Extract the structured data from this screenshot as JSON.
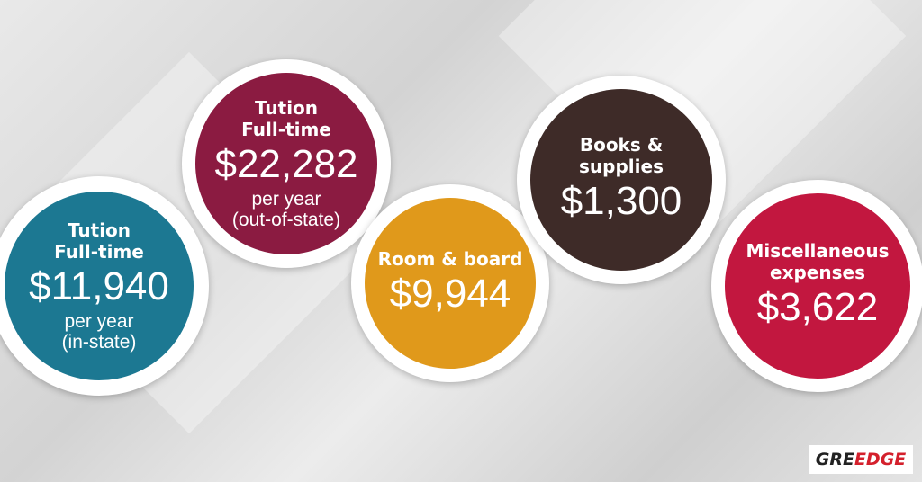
{
  "circles": [
    {
      "title_lines": [
        "Tution",
        "Full-time"
      ],
      "amount": "$11,940",
      "note_lines": [
        "per year",
        "(in-state)"
      ]
    },
    {
      "title_lines": [
        "Tution",
        "Full-time"
      ],
      "amount": "$22,282",
      "note_lines": [
        "per year",
        "(out-of-state)"
      ]
    },
    {
      "title_lines": [
        "Room & board"
      ],
      "amount": "$9,944",
      "note_lines": []
    },
    {
      "title_lines": [
        "Books &",
        "supplies"
      ],
      "amount": "$1,300",
      "note_lines": []
    },
    {
      "title_lines": [
        "Miscellaneous",
        "expenses"
      ],
      "amount": "$3,622",
      "note_lines": []
    }
  ],
  "logo": {
    "part1": "GRE",
    "part2": "EDGE"
  }
}
